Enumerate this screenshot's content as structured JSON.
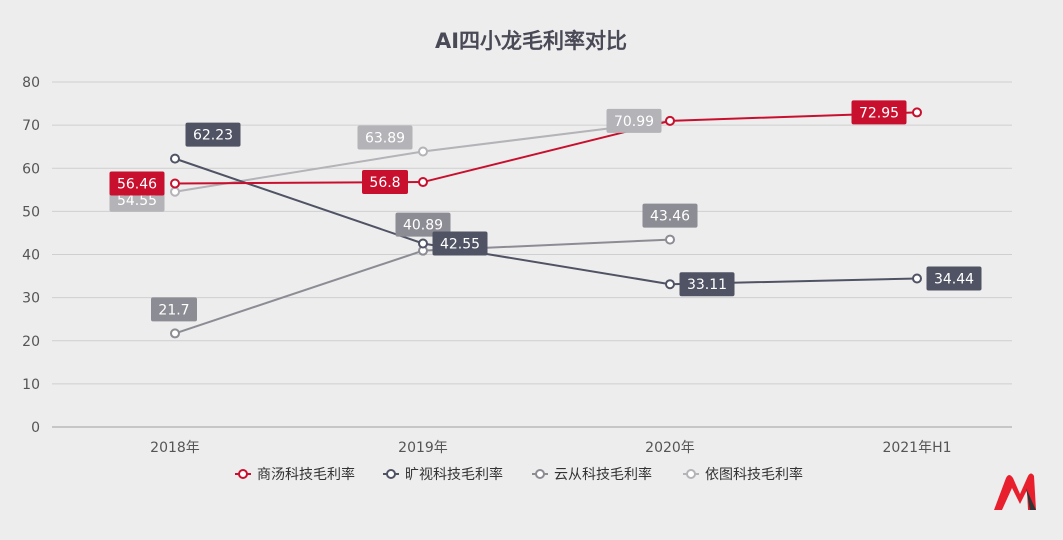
{
  "chart_data": {
    "type": "line",
    "title": "AI四小龙毛利率对比",
    "categories": [
      "2018年",
      "2019年",
      "2020年",
      "2021年H1"
    ],
    "ylim": [
      0,
      80
    ],
    "yticks": [
      0,
      10,
      20,
      30,
      40,
      50,
      60,
      70,
      80
    ],
    "grid": true,
    "legend": "bottom",
    "series": [
      {
        "name": "商汤科技毛利率",
        "color": "#c8102e",
        "values": [
          56.46,
          56.8,
          70.99,
          72.95
        ],
        "labels": [
          "56.46",
          "56.8",
          "",
          "72.95"
        ]
      },
      {
        "name": "旷视科技毛利率",
        "color": "#4f5364",
        "values": [
          62.23,
          42.55,
          33.11,
          34.44
        ],
        "labels": [
          "62.23",
          "42.55",
          "33.11",
          "34.44"
        ]
      },
      {
        "name": "云从科技毛利率",
        "color": "#8c8c94",
        "values": [
          21.7,
          40.89,
          43.46,
          null
        ],
        "labels": [
          "21.7",
          "40.89",
          "43.46",
          ""
        ]
      },
      {
        "name": "依图科技毛利率",
        "color": "#b3b3b8",
        "values": [
          54.55,
          63.89,
          70.99,
          null
        ],
        "labels": [
          "54.55",
          "63.89",
          "70.99",
          ""
        ]
      }
    ]
  },
  "logo": {
    "icon": "brand-m-logo-icon",
    "colors": [
      "#e8202e",
      "#333333"
    ]
  }
}
